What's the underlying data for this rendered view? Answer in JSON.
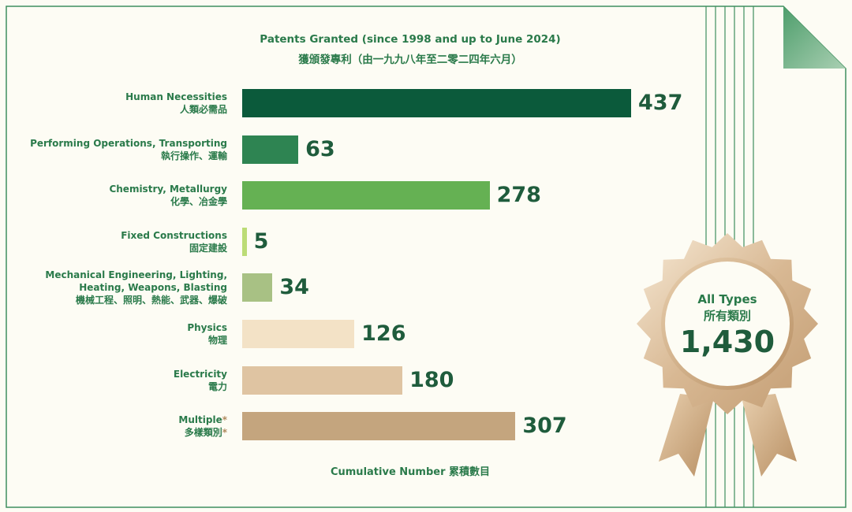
{
  "chart_data": {
    "type": "bar",
    "orientation": "horizontal",
    "title": "Patents Granted (since 1998 and up to June 2024)",
    "title_zh": "獲頒發專利（由一九九八年至二零二四年六月）",
    "xlabel": "Cumulative Number 累積數目",
    "categories": [
      {
        "en": [
          "Human Necessities"
        ],
        "zh": "人類必需品",
        "starred": false
      },
      {
        "en": [
          "Performing Operations, Transporting"
        ],
        "zh": "執行操作、運輸",
        "starred": false
      },
      {
        "en": [
          "Chemistry, Metallurgy"
        ],
        "zh": "化學、冶金學",
        "starred": false
      },
      {
        "en": [
          "Fixed Constructions"
        ],
        "zh": "固定建設",
        "starred": false
      },
      {
        "en": [
          "Mechanical Engineering, Lighting,",
          "Heating, Weapons, Blasting"
        ],
        "zh": "機械工程、照明、熱能、武器、爆破",
        "starred": false
      },
      {
        "en": [
          "Physics"
        ],
        "zh": "物理",
        "starred": false
      },
      {
        "en": [
          "Electricity"
        ],
        "zh": "電力",
        "starred": false
      },
      {
        "en": [
          "Multiple"
        ],
        "zh": "多樣類別",
        "starred": true
      }
    ],
    "values": [
      437,
      63,
      278,
      5,
      34,
      126,
      180,
      307
    ],
    "value_labels": [
      "437",
      "63",
      "278",
      "5",
      "34",
      "126",
      "180",
      "307"
    ],
    "colors": [
      "#0b5a3b",
      "#2e8452",
      "#65b153",
      "#bcdc76",
      "#a8c184",
      "#f3e2c6",
      "#dfc4a2",
      "#c4a57e"
    ],
    "star_mark": "*",
    "xlim": [
      0,
      437
    ],
    "grid": false,
    "legend": "none"
  },
  "badge": {
    "line1": "All Types",
    "line2": "所有類別",
    "total": "1,430",
    "icon": "award-rosette-icon"
  },
  "colors": {
    "background": "#fdfcf4",
    "border": "#3f8f5e",
    "text_green": "#2a7a4a",
    "value_green": "#1f5c3c"
  }
}
